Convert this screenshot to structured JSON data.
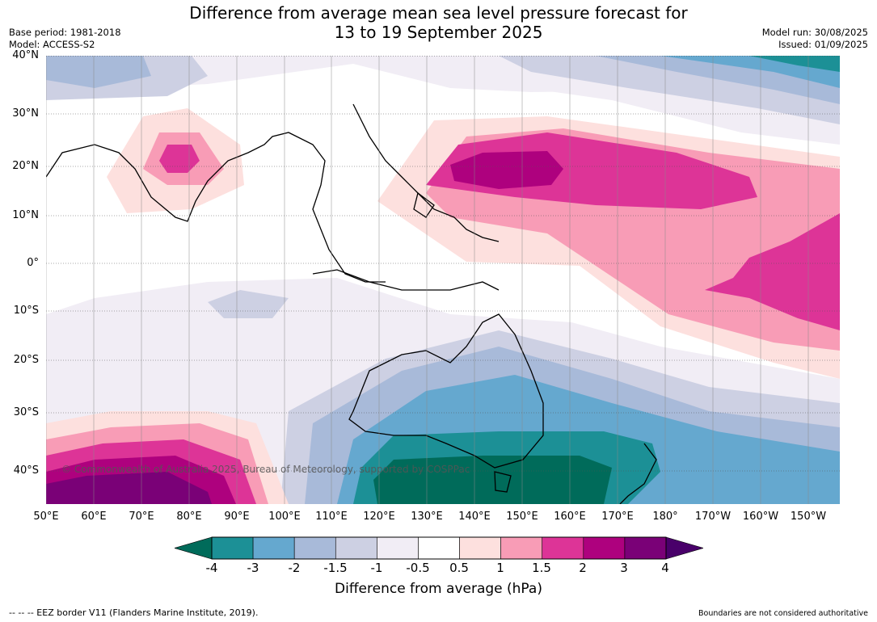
{
  "title_line1": "Difference from average mean sea level pressure forecast for",
  "title_line2": "13 to 19 September 2025",
  "base_period": "Base period: 1981-2018",
  "model": "Model: ACCESS-S2",
  "model_run": "Model run: 30/08/2025",
  "issued": "Issued: 01/09/2025",
  "copyright": "© Commonwealth of Australia 2025, Bureau of Meteorology, supported by COSPPac",
  "lat_labels": [
    "40°N",
    "30°N",
    "20°N",
    "10°N",
    "0°",
    "10°S",
    "20°S",
    "30°S",
    "40°S"
  ],
  "lon_labels": [
    "50°E",
    "60°E",
    "70°E",
    "80°E",
    "90°E",
    "100°E",
    "110°E",
    "120°E",
    "130°E",
    "140°E",
    "150°E",
    "160°E",
    "170°E",
    "180°",
    "170°W",
    "160°W",
    "150°W"
  ],
  "colorbar": {
    "label": "Difference from average (hPa)",
    "ticks": [
      "-4",
      "-3",
      "-2",
      "-1.5",
      "-1",
      "-0.5",
      "0.5",
      "1",
      "1.5",
      "2",
      "3",
      "4"
    ],
    "colors": [
      "#006b5a",
      "#1c9096",
      "#65a8cf",
      "#a8bad9",
      "#cdd0e3",
      "#f1edf5",
      "#ffffff",
      "#fde0de",
      "#f89cb6",
      "#dd3497",
      "#ae017e",
      "#7a0177",
      "#49006a"
    ]
  },
  "footer_left": "--  --  -- EEZ border V11 (Flanders Marine Institute, 2019).",
  "footer_right": "Boundaries are not considered authoritative"
}
